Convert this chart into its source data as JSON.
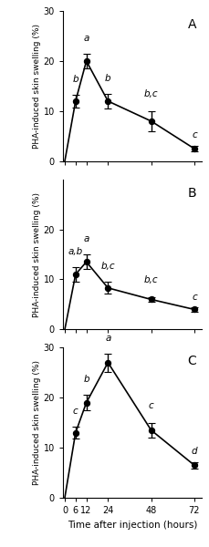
{
  "panels": [
    {
      "label": "A",
      "x": [
        6,
        12,
        24,
        48,
        72
      ],
      "y": [
        12.0,
        20.0,
        12.0,
        8.0,
        2.5
      ],
      "yerr": [
        1.3,
        1.5,
        1.5,
        2.0,
        0.6
      ],
      "sig_labels": [
        "b",
        "a",
        "b",
        "b,c",
        "c"
      ],
      "sig_x_offset": [
        0,
        0,
        0,
        0,
        0
      ],
      "ylim": [
        0,
        30
      ],
      "yticks": [
        0,
        10,
        20,
        30
      ],
      "ylabel": "PHA-induced skin swelling (%)"
    },
    {
      "label": "B",
      "x": [
        6,
        12,
        24,
        48,
        72
      ],
      "y": [
        11.0,
        13.5,
        8.3,
        6.0,
        4.0
      ],
      "yerr": [
        1.5,
        1.5,
        1.2,
        0.5,
        0.4
      ],
      "sig_labels": [
        "a,b",
        "a",
        "b,c",
        "b,c",
        "c"
      ],
      "sig_x_offset": [
        0,
        0,
        0,
        0,
        0
      ],
      "ylim": [
        0,
        30
      ],
      "yticks": [
        0,
        10,
        20
      ],
      "ylabel": "PHA-induced skin swelling (%)"
    },
    {
      "label": "C",
      "x": [
        6,
        12,
        24,
        48,
        72
      ],
      "y": [
        13.0,
        19.0,
        27.0,
        13.5,
        6.5
      ],
      "yerr": [
        1.2,
        1.5,
        1.8,
        1.5,
        0.6
      ],
      "sig_labels": [
        "c",
        "b",
        "a",
        "c",
        "d"
      ],
      "sig_x_offset": [
        0,
        0,
        0,
        0,
        0
      ],
      "ylim": [
        0,
        30
      ],
      "yticks": [
        0,
        10,
        20,
        30
      ],
      "ylabel": "PHA-induced skin swelling (%)"
    }
  ],
  "xlabel": "Time after injection (hours)",
  "line_color": "black",
  "marker": "o",
  "markersize": 4.5,
  "marker_facecolor": "black",
  "capsize": 3,
  "elinewidth": 1.0,
  "linewidth": 1.2,
  "fontsize_label": 6.5,
  "fontsize_sig": 7.5,
  "fontsize_panel": 10,
  "fontsize_tick": 7,
  "fontsize_xlabel": 7.5,
  "background_color": "#ffffff"
}
